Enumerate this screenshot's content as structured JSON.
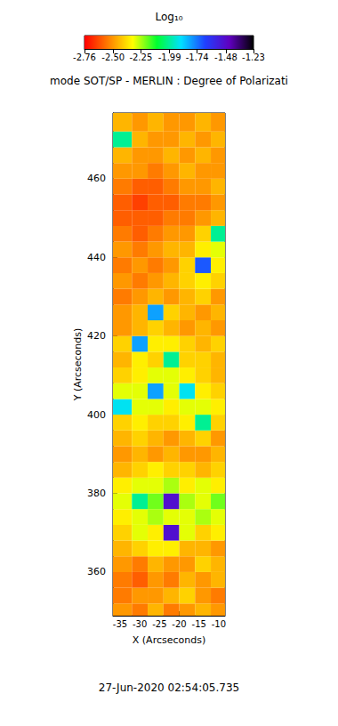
{
  "chart_data": {
    "type": "heatmap",
    "title": "mode SOT/SP - MERLIN : Degree of Polarizati",
    "xlabel": "X (Arcseconds)",
    "ylabel": "Y (Arcseconds)",
    "footer": "27-Jun-2020 02:54:05.735",
    "xlim": [
      -36.8,
      -8.4
    ],
    "ylim": [
      348.9,
      476.7
    ],
    "xticks": [
      -35,
      -30,
      -25,
      -20,
      -15,
      -10
    ],
    "yticks": [
      360,
      380,
      400,
      420,
      440,
      460
    ],
    "x_edges": [
      -36.8,
      -32,
      -28,
      -24,
      -20,
      -16,
      -12,
      -8.4
    ],
    "y_edges": [
      348.9,
      352,
      356,
      360,
      364,
      368,
      372,
      376,
      380,
      384,
      388,
      392,
      396,
      400,
      404,
      408,
      412,
      416,
      420,
      424,
      428,
      432,
      436,
      440,
      444,
      448,
      452,
      456,
      460,
      464,
      468,
      472,
      476.7
    ],
    "cells": [
      [
        -2.5,
        -2.55,
        -2.45,
        -2.55,
        -2.5,
        -2.45,
        -2.5
      ],
      [
        -2.55,
        -2.5,
        -2.5,
        -2.45,
        -2.4,
        -2.5,
        -2.55
      ],
      [
        -2.55,
        -2.6,
        -2.5,
        -2.55,
        -2.45,
        -2.5,
        -2.45
      ],
      [
        -2.5,
        -2.55,
        -2.45,
        -2.5,
        -2.5,
        -2.4,
        -2.45
      ],
      [
        -2.45,
        -2.4,
        -2.35,
        -2.35,
        -2.45,
        -2.45,
        -2.5
      ],
      [
        -2.4,
        -2.3,
        -2.35,
        -1.5,
        -2.3,
        -2.4,
        -2.35
      ],
      [
        -2.35,
        -2.3,
        -2.25,
        -2.3,
        -2.3,
        -2.25,
        -2.3
      ],
      [
        -2.3,
        -2.0,
        -2.2,
        -1.5,
        -2.25,
        -2.3,
        -2.2
      ],
      [
        -2.35,
        -2.3,
        -2.3,
        -2.25,
        -2.35,
        -2.3,
        -2.35
      ],
      [
        -2.45,
        -2.4,
        -2.35,
        -2.4,
        -2.4,
        -2.45,
        -2.4
      ],
      [
        -2.5,
        -2.45,
        -2.5,
        -2.45,
        -2.5,
        -2.5,
        -2.45
      ],
      [
        -2.45,
        -2.4,
        -2.45,
        -2.5,
        -2.45,
        -2.4,
        -2.5
      ],
      [
        -2.4,
        -2.35,
        -2.4,
        -2.4,
        -2.35,
        -2.0,
        -2.4
      ],
      [
        -1.9,
        -2.3,
        -2.3,
        -2.35,
        -2.3,
        -2.3,
        -2.35
      ],
      [
        -2.3,
        -2.3,
        -1.8,
        -2.3,
        -1.9,
        -2.35,
        -2.4
      ],
      [
        -2.4,
        -2.35,
        -2.3,
        -2.3,
        -2.35,
        -2.4,
        -2.45
      ],
      [
        -2.45,
        -2.35,
        -2.4,
        -2.0,
        -2.4,
        -2.4,
        -2.45
      ],
      [
        -2.4,
        -1.8,
        -2.35,
        -2.35,
        -2.4,
        -2.45,
        -2.4
      ],
      [
        -2.5,
        -2.45,
        -2.4,
        -2.45,
        -2.5,
        -2.45,
        -2.5
      ],
      [
        -2.5,
        -2.45,
        -1.8,
        -2.4,
        -2.45,
        -2.5,
        -2.45
      ],
      [
        -2.55,
        -2.5,
        -2.45,
        -2.5,
        -2.45,
        -2.4,
        -2.5
      ],
      [
        -2.5,
        -2.55,
        -2.5,
        -2.45,
        -2.4,
        -2.35,
        -2.4
      ],
      [
        -2.55,
        -2.5,
        -2.55,
        -2.5,
        -2.4,
        -1.7,
        -2.35
      ],
      [
        -2.5,
        -2.55,
        -2.5,
        -2.45,
        -2.45,
        -2.35,
        -2.3
      ],
      [
        -2.55,
        -2.6,
        -2.55,
        -2.5,
        -2.5,
        -2.4,
        -2.0
      ],
      [
        -2.6,
        -2.6,
        -2.6,
        -2.55,
        -2.55,
        -2.5,
        -2.45
      ],
      [
        -2.6,
        -2.65,
        -2.6,
        -2.6,
        -2.55,
        -2.55,
        -2.5
      ],
      [
        -2.55,
        -2.6,
        -2.6,
        -2.55,
        -2.5,
        -2.5,
        -2.45
      ],
      [
        -2.5,
        -2.5,
        -2.55,
        -2.5,
        -2.45,
        -2.5,
        -2.5
      ],
      [
        -2.45,
        -2.5,
        -2.5,
        -2.45,
        -2.5,
        -2.45,
        -2.5
      ],
      [
        -2.0,
        -2.45,
        -2.5,
        -2.5,
        -2.45,
        -2.5,
        -2.45
      ],
      [
        -2.45,
        -2.5,
        -2.45,
        -2.5,
        -2.5,
        -2.45,
        -2.5
      ]
    ],
    "colorbar": {
      "label": "Log₁₀",
      "range": [
        -2.76,
        -1.23
      ],
      "ticks": [
        -2.76,
        {
          "value": -2.5,
          "label": "-2.50"
        },
        -2.25,
        -1.99,
        -1.74,
        -1.48,
        -1.23
      ],
      "colorscale": [
        "#ff0000",
        "#ff8000",
        "#ffff00",
        "#00ff30",
        "#00e0ff",
        "#2040ff",
        "#6000c0",
        "#000000"
      ]
    }
  }
}
